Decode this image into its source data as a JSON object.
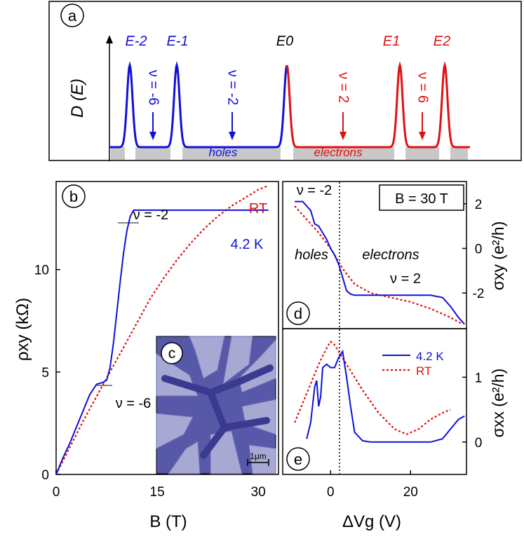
{
  "chart_data": [
    {
      "panel": "a",
      "type": "line",
      "title": "",
      "ylabel": "D (E)",
      "level_labels": [
        "E-2",
        "E-1",
        "E0",
        "E1",
        "E2"
      ],
      "level_colors": [
        "#1010d8",
        "#1010d8",
        "#000000",
        "#e01010",
        "#e01010"
      ],
      "filling_labels": [
        {
          "text": "ν = -6",
          "color": "#1010d8"
        },
        {
          "text": "ν = -2",
          "color": "#1010d8"
        },
        {
          "text": "ν = 2",
          "color": "#e01010"
        },
        {
          "text": "ν = 6",
          "color": "#e01010"
        }
      ],
      "region_labels": {
        "holes": "holes",
        "electrons": "electrons"
      },
      "series": [
        {
          "name": "holes",
          "color": "#1010d8"
        },
        {
          "name": "electrons",
          "color": "#e01010"
        }
      ]
    },
    {
      "panel": "b",
      "type": "line",
      "xlabel": "B (T)",
      "ylabel": "ρxy (kΩ)",
      "xlim": [
        0,
        33
      ],
      "ylim": [
        0,
        14.3
      ],
      "xticks": [
        "0",
        "15",
        "30"
      ],
      "yticks": [
        "0",
        "5",
        "10"
      ],
      "annotations": [
        "ν = -2",
        "ν = -6"
      ],
      "series": [
        {
          "name": "4.2 K",
          "color": "#1010d8",
          "style": "solid",
          "x": [
            0,
            1,
            2,
            3,
            4,
            5,
            6,
            7,
            7.5,
            8,
            8.5,
            9,
            9.5,
            10,
            10.5,
            11,
            11.5,
            12,
            15,
            20,
            25,
            30,
            31.5
          ],
          "y": [
            0,
            0.8,
            1.5,
            2.3,
            3.1,
            3.9,
            4.4,
            4.5,
            4.6,
            5.2,
            6.4,
            7.9,
            9.4,
            10.8,
            11.9,
            12.6,
            12.9,
            12.9,
            12.9,
            12.9,
            12.9,
            12.9,
            12.9
          ]
        },
        {
          "name": "RT",
          "color": "#e01010",
          "style": "dotted",
          "x": [
            0,
            2,
            4,
            6,
            8,
            10,
            12,
            14,
            16,
            18,
            20,
            22,
            24,
            26,
            28,
            30,
            31.5
          ],
          "y": [
            0,
            1.3,
            2.6,
            3.8,
            5.0,
            6.2,
            7.4,
            8.6,
            9.6,
            10.5,
            11.3,
            12.0,
            12.6,
            13.1,
            13.5,
            13.9,
            14.1
          ]
        }
      ]
    },
    {
      "panel": "c",
      "type": "image",
      "scale_label": "1μm"
    },
    {
      "panel": "d",
      "type": "line",
      "ylabel": "σxy (e²/h)",
      "xlim": [
        -12,
        34
      ],
      "ylim": [
        -3.6,
        3.0
      ],
      "yticks": [
        "2",
        "0",
        "-2"
      ],
      "annotations": [
        "ν = -2",
        "ν = 2",
        "holes",
        "electrons"
      ],
      "box_label": "B = 30 T",
      "series": [
        {
          "name": "4.2 K",
          "color": "#1010d8",
          "style": "solid",
          "x": [
            -9,
            -7,
            -6,
            -5,
            -4,
            -3,
            -2,
            -1,
            0,
            1,
            2,
            3,
            4,
            5,
            6,
            8,
            10,
            15,
            20,
            25,
            28,
            30,
            32,
            33.5
          ],
          "y": [
            2.1,
            2.1,
            1.9,
            1.7,
            1.1,
            1.0,
            0.7,
            0.4,
            0.0,
            -0.3,
            -0.7,
            -1.3,
            -1.9,
            -2.05,
            -2.1,
            -2.1,
            -2.1,
            -2.1,
            -2.1,
            -2.1,
            -2.2,
            -2.6,
            -3.1,
            -3.4
          ]
        },
        {
          "name": "RT",
          "color": "#e01010",
          "style": "dotted",
          "x": [
            -9,
            -6,
            -3,
            0,
            3,
            6,
            10,
            15,
            20,
            25,
            30,
            33
          ],
          "y": [
            1.9,
            1.3,
            0.7,
            0.0,
            -0.9,
            -1.6,
            -2.0,
            -2.2,
            -2.4,
            -2.7,
            -3.1,
            -3.4
          ]
        }
      ]
    },
    {
      "panel": "e",
      "type": "line",
      "xlabel": "ΔVg (V)",
      "ylabel": "σxx (e²/h)",
      "xlim": [
        -12,
        34
      ],
      "ylim": [
        -0.5,
        1.75
      ],
      "xticks": [
        "0",
        "20"
      ],
      "yticks": [
        "1",
        "0"
      ],
      "legend": [
        "4.2 K",
        "RT"
      ],
      "series": [
        {
          "name": "4.2 K",
          "color": "#1010d8",
          "style": "solid",
          "x": [
            -6,
            -5,
            -4,
            -3.5,
            -3,
            -2.5,
            -2,
            -1,
            0,
            1,
            2,
            3,
            4,
            5,
            6,
            8,
            10,
            15,
            20,
            25,
            28,
            30,
            32,
            33.5
          ],
          "y": [
            0.05,
            0.3,
            0.85,
            0.95,
            0.55,
            0.7,
            1.15,
            1.2,
            1.15,
            1.15,
            1.3,
            1.4,
            1.0,
            0.55,
            0.15,
            0.02,
            0.0,
            0.0,
            0.0,
            0.0,
            0.05,
            0.2,
            0.35,
            0.4
          ]
        },
        {
          "name": "RT",
          "color": "#e01010",
          "style": "dotted",
          "x": [
            -9,
            -7,
            -5,
            -3,
            -1,
            0,
            1,
            3,
            5,
            8,
            12,
            16,
            19,
            22,
            25,
            28,
            30
          ],
          "y": [
            0.3,
            0.6,
            0.9,
            1.2,
            1.45,
            1.55,
            1.5,
            1.3,
            1.1,
            0.8,
            0.45,
            0.2,
            0.12,
            0.2,
            0.35,
            0.45,
            0.5
          ]
        }
      ]
    }
  ],
  "panel_labels": [
    "a",
    "b",
    "c",
    "d",
    "e"
  ],
  "b_labels": {
    "rt": "RT",
    "low_t": "4.2 K",
    "nu_m2": "ν = -2",
    "nu_m6": "ν = -6"
  },
  "de_labels": {
    "nu_m2": "ν = -2",
    "nu_p2": "ν = 2",
    "holes": "holes",
    "electrons": "electrons",
    "box": "B = 30 T",
    "leg_low": "4.2 K",
    "leg_rt": "RT",
    "scale": "1μm"
  }
}
